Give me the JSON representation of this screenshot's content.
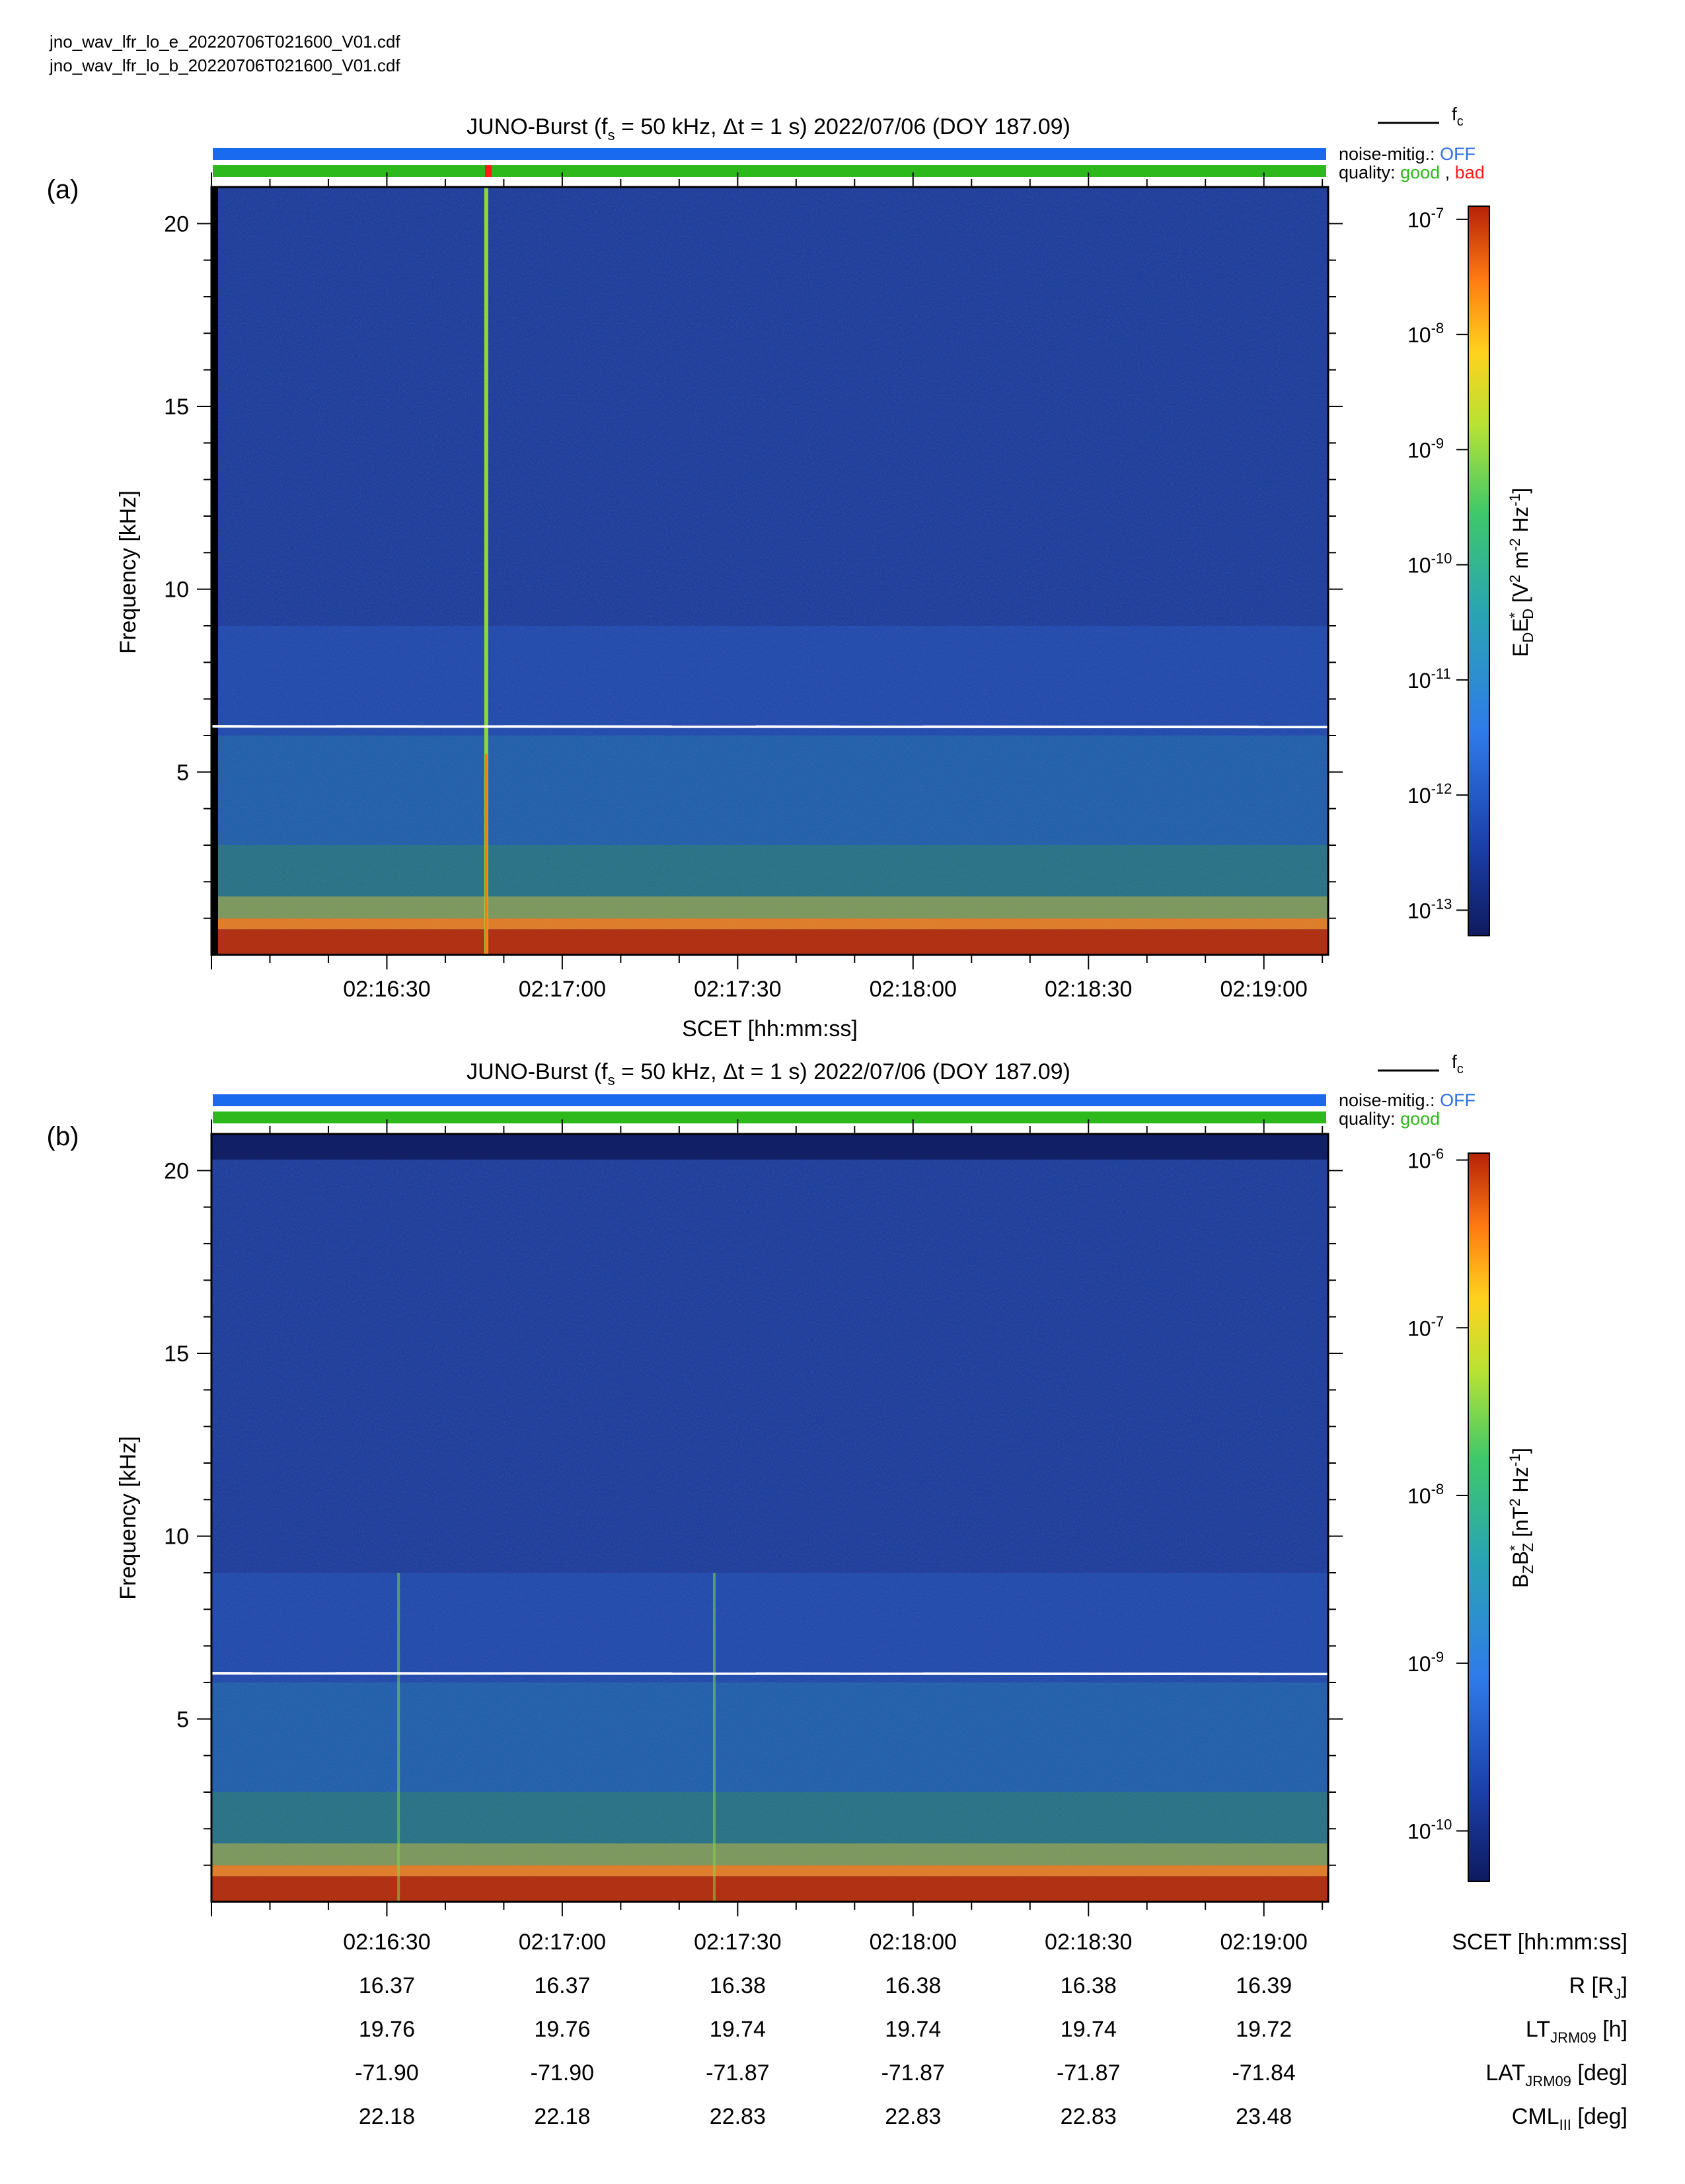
{
  "files": {
    "e": "jno_wav_lfr_lo_e_20220706T021600_V01.cdf",
    "b": "jno_wav_lfr_lo_b_20220706T021600_V01.cdf"
  },
  "common": {
    "title_main": "JUNO-Burst (f",
    "title_sub": "s",
    "title_rest": " = 50 kHz, Δt = 1 s)  2022/07/06 (DOY 187.09)",
    "fc_legend": "f",
    "fc_legend_sub": "c",
    "noise_label": "noise-mitig.: ",
    "noise_value": "OFF",
    "quality_label": "quality: ",
    "quality_good": "good",
    "quality_comma": " , ",
    "quality_bad": "bad",
    "ylabel": "Frequency [kHz]",
    "xlabel": "SCET [hh:mm:ss]",
    "colors": {
      "noise_bar": "#1a6af0",
      "good": "#2db81c",
      "bad": "#ff1a1a",
      "noise_text": "#2f6fe6",
      "fc_line": "#ffffff"
    }
  },
  "panels": {
    "a": {
      "letter": "(a)",
      "cbar_label": {
        "p1": "E",
        "s1": "D",
        "p2": "E",
        "sup2": "*",
        "s2": "D",
        "p3": " [V",
        "sup3": "2",
        "p4": " m",
        "sup4": "-2",
        "p5": " Hz",
        "sup5": "-1",
        "p6": "]"
      },
      "cbar_ticks": [
        {
          "mant": "10",
          "exp": "-7"
        },
        {
          "mant": "10",
          "exp": "-8"
        },
        {
          "mant": "10",
          "exp": "-9"
        },
        {
          "mant": "10",
          "exp": "-10"
        },
        {
          "mant": "10",
          "exp": "-11"
        },
        {
          "mant": "10",
          "exp": "-12"
        },
        {
          "mant": "10",
          "exp": "-13"
        }
      ]
    },
    "b": {
      "letter": "(b)",
      "cbar_label": {
        "p1": "B",
        "s1": "Z",
        "p2": "B",
        "sup2": "*",
        "s2": "Z",
        "p3": " [nT",
        "sup3": "2",
        "p4": " Hz",
        "sup4": "-1",
        "p5": "]"
      },
      "cbar_ticks": [
        {
          "mant": "10",
          "exp": "-6"
        },
        {
          "mant": "10",
          "exp": "-7"
        },
        {
          "mant": "10",
          "exp": "-8"
        },
        {
          "mant": "10",
          "exp": "-9"
        },
        {
          "mant": "10",
          "exp": "-10"
        }
      ]
    }
  },
  "ephemeris": {
    "times": [
      "02:16:30",
      "02:17:00",
      "02:17:30",
      "02:18:00",
      "02:18:30",
      "02:19:00"
    ],
    "rows": [
      {
        "label": "SCET [hh:mm:ss]",
        "values": [
          "02:16:30",
          "02:17:00",
          "02:17:30",
          "02:18:00",
          "02:18:30",
          "02:19:00"
        ]
      },
      {
        "label": "R [R",
        "label_sub": "J",
        "label_end": "]",
        "values": [
          "16.37",
          "16.37",
          "16.38",
          "16.38",
          "16.38",
          "16.39"
        ]
      },
      {
        "label": "LT",
        "label_sub": "JRM09",
        "label_end": " [h]",
        "values": [
          "19.76",
          "19.76",
          "19.74",
          "19.74",
          "19.74",
          "19.72"
        ]
      },
      {
        "label": "LAT",
        "label_sub": "JRM09",
        "label_end": " [deg]",
        "values": [
          "-71.90",
          "-71.90",
          "-71.87",
          "-71.87",
          "-71.87",
          "-71.84"
        ]
      },
      {
        "label": "CML",
        "label_sub": "III",
        "label_end": " [deg]",
        "values": [
          "22.18",
          "22.18",
          "22.83",
          "22.83",
          "22.83",
          "23.48"
        ]
      }
    ]
  },
  "chart_data": [
    {
      "type": "heatmap",
      "panel": "a",
      "title": "JUNO-Burst (fs = 50 kHz, Δt = 1 s)  2022/07/06 (DOY 187.09)",
      "xlabel": "SCET [hh:mm:ss]",
      "ylabel": "Frequency [kHz]",
      "x_ticks": [
        "02:16:30",
        "02:17:00",
        "02:17:30",
        "02:18:00",
        "02:18:30",
        "02:19:00"
      ],
      "xlim": [
        "02:16:00",
        "02:19:11"
      ],
      "y_ticks": [
        5,
        10,
        15,
        20
      ],
      "ylim": [
        0,
        21
      ],
      "colorbar": {
        "label": "EDED* [V2 m-2 Hz-1]",
        "scale": "log",
        "range": [
          6e-14,
          1.3e-07
        ],
        "ticks": [
          1e-07,
          1e-08,
          1e-09,
          1e-10,
          1e-11,
          1e-12,
          1e-13
        ]
      },
      "fc_kHz": 6.25,
      "impulse_time": "02:16:47",
      "noise_mitigation": "OFF",
      "quality_bad_interval": [
        "02:16:47",
        "02:16:48"
      ]
    },
    {
      "type": "heatmap",
      "panel": "b",
      "title": "JUNO-Burst (fs = 50 kHz, Δt = 1 s)  2022/07/06 (DOY 187.09)",
      "xlabel": "SCET [hh:mm:ss]",
      "ylabel": "Frequency [kHz]",
      "x_ticks": [
        "02:16:30",
        "02:17:00",
        "02:17:30",
        "02:18:00",
        "02:18:30",
        "02:19:00"
      ],
      "xlim": [
        "02:16:00",
        "02:19:11"
      ],
      "y_ticks": [
        5,
        10,
        15,
        20
      ],
      "ylim": [
        0,
        21
      ],
      "colorbar": {
        "label": "BZBZ* [nT2 Hz-1]",
        "scale": "log",
        "range": [
          5e-11,
          1.1e-06
        ],
        "ticks": [
          1e-06,
          1e-07,
          1e-08,
          1e-09,
          1e-10
        ]
      },
      "fc_kHz": 6.25,
      "impulse_times": [
        "02:16:32",
        "02:17:26"
      ],
      "noise_mitigation": "OFF",
      "quality": "good"
    }
  ]
}
